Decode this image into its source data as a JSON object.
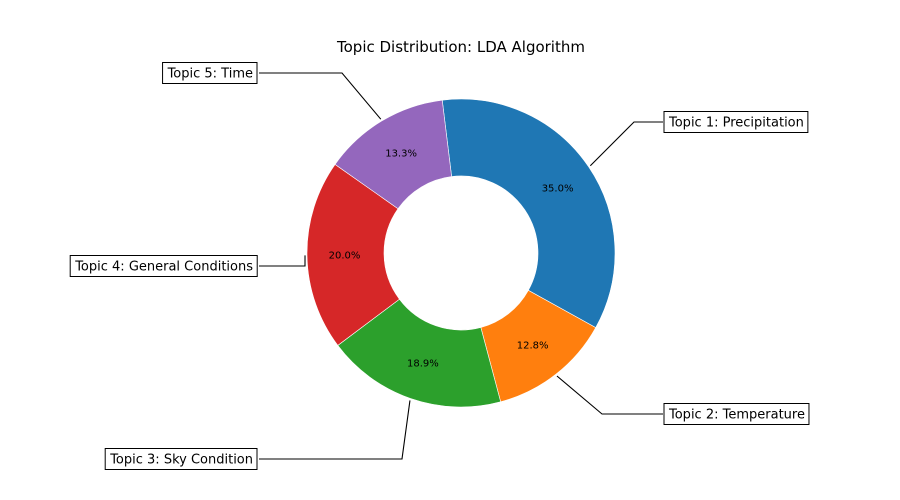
{
  "chart_data": {
    "type": "pie",
    "style": "donut",
    "title": "Topic Distribution: LDA Algorithm",
    "slices": [
      {
        "label": "Topic 1: Precipitation",
        "value": 35.0,
        "pct_label": "35.0%",
        "color": "#1f77b4"
      },
      {
        "label": "Topic 2: Temperature",
        "value": 12.8,
        "pct_label": "12.8%",
        "color": "#ff7f0e"
      },
      {
        "label": "Topic 3: Sky Condition",
        "value": 18.9,
        "pct_label": "18.9%",
        "color": "#2ca02c"
      },
      {
        "label": "Topic 4: General Conditions",
        "value": 20.0,
        "pct_label": "20.0%",
        "color": "#d62728"
      },
      {
        "label": "Topic 5: Time",
        "value": 13.3,
        "pct_label": "13.3%",
        "color": "#9467bd"
      }
    ]
  }
}
